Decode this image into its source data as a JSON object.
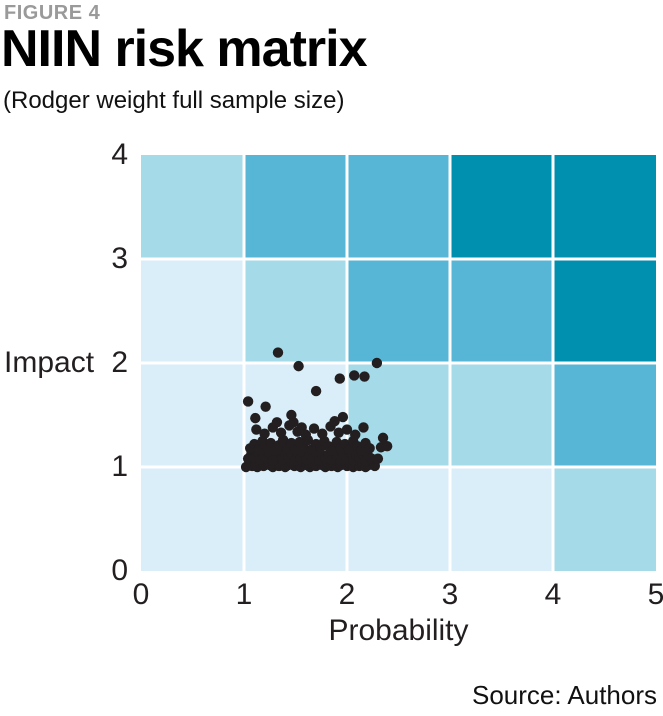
{
  "header": {
    "figure_label": "FIGURE 4",
    "title": "NIIN risk matrix",
    "subtitle": "(Rodger weight full sample size)"
  },
  "footer": {
    "source": "Source: Authors"
  },
  "chart_data": {
    "type": "scatter",
    "title": "NIIN risk matrix",
    "subtitle": "(Rodger weight full sample size)",
    "xlabel": "Probability",
    "ylabel": "Impact",
    "xlim": [
      0,
      5
    ],
    "ylim": [
      0,
      4
    ],
    "x_ticks": [
      "0",
      "1",
      "2",
      "3",
      "4",
      "5"
    ],
    "y_ticks_top_to_bottom": [
      "4",
      "3",
      "2",
      "1",
      "0"
    ],
    "grid": {
      "rows": 4,
      "cols": 5,
      "gap_color": "#FFFFFF",
      "gap_width": 3
    },
    "palette": {
      "very_low": "#D9EEF9",
      "low": "#A5DAE8",
      "medium": "#57B6D5",
      "high": "#0090AF"
    },
    "cell_colors_top_to_bottom": [
      [
        "#A5DAE8",
        "#57B6D5",
        "#57B6D5",
        "#0090AF",
        "#0090AF"
      ],
      [
        "#D9EEF9",
        "#A5DAE8",
        "#57B6D5",
        "#57B6D5",
        "#0090AF"
      ],
      [
        "#D9EEF9",
        "#D9EEF9",
        "#A5DAE8",
        "#A5DAE8",
        "#57B6D5"
      ],
      [
        "#D9EEF9",
        "#D9EEF9",
        "#D9EEF9",
        "#D9EEF9",
        "#A5DAE8"
      ]
    ],
    "point_color": "#231F20",
    "point_radius": 5.2,
    "points": [
      [
        1.02,
        1.0
      ],
      [
        1.05,
        1.02
      ],
      [
        1.08,
        1.01
      ],
      [
        1.1,
        1.04
      ],
      [
        1.13,
        1.0
      ],
      [
        1.16,
        1.03
      ],
      [
        1.19,
        1.01
      ],
      [
        1.22,
        1.05
      ],
      [
        1.25,
        1.02
      ],
      [
        1.28,
        1.0
      ],
      [
        1.31,
        1.03
      ],
      [
        1.34,
        1.01
      ],
      [
        1.37,
        1.04
      ],
      [
        1.4,
        1.0
      ],
      [
        1.43,
        1.02
      ],
      [
        1.46,
        1.05
      ],
      [
        1.49,
        1.01
      ],
      [
        1.52,
        1.03
      ],
      [
        1.55,
        1.0
      ],
      [
        1.58,
        1.04
      ],
      [
        1.61,
        1.02
      ],
      [
        1.64,
        1.0
      ],
      [
        1.67,
        1.03
      ],
      [
        1.7,
        1.01
      ],
      [
        1.73,
        1.05
      ],
      [
        1.76,
        1.02
      ],
      [
        1.79,
        1.0
      ],
      [
        1.82,
        1.04
      ],
      [
        1.85,
        1.01
      ],
      [
        1.88,
        1.03
      ],
      [
        1.91,
        1.0
      ],
      [
        1.94,
        1.02
      ],
      [
        1.97,
        1.05
      ],
      [
        2.0,
        1.01
      ],
      [
        2.03,
        1.03
      ],
      [
        2.06,
        1.0
      ],
      [
        2.09,
        1.04
      ],
      [
        2.12,
        1.01
      ],
      [
        2.15,
        1.03
      ],
      [
        2.18,
        1.0
      ],
      [
        2.21,
        1.02
      ],
      [
        2.24,
        1.05
      ],
      [
        2.27,
        1.01
      ],
      [
        1.04,
        1.08
      ],
      [
        1.07,
        1.12
      ],
      [
        1.1,
        1.09
      ],
      [
        1.13,
        1.14
      ],
      [
        1.16,
        1.07
      ],
      [
        1.19,
        1.11
      ],
      [
        1.22,
        1.08
      ],
      [
        1.25,
        1.13
      ],
      [
        1.28,
        1.06
      ],
      [
        1.31,
        1.1
      ],
      [
        1.34,
        1.14
      ],
      [
        1.37,
        1.07
      ],
      [
        1.4,
        1.12
      ],
      [
        1.43,
        1.09
      ],
      [
        1.46,
        1.13
      ],
      [
        1.49,
        1.06
      ],
      [
        1.52,
        1.11
      ],
      [
        1.55,
        1.08
      ],
      [
        1.58,
        1.13
      ],
      [
        1.61,
        1.07
      ],
      [
        1.64,
        1.12
      ],
      [
        1.67,
        1.09
      ],
      [
        1.7,
        1.14
      ],
      [
        1.73,
        1.06
      ],
      [
        1.76,
        1.11
      ],
      [
        1.79,
        1.08
      ],
      [
        1.82,
        1.12
      ],
      [
        1.85,
        1.07
      ],
      [
        1.88,
        1.13
      ],
      [
        1.91,
        1.09
      ],
      [
        1.94,
        1.06
      ],
      [
        1.97,
        1.12
      ],
      [
        2.0,
        1.08
      ],
      [
        2.03,
        1.14
      ],
      [
        2.06,
        1.07
      ],
      [
        2.09,
        1.11
      ],
      [
        2.12,
        1.09
      ],
      [
        2.15,
        1.13
      ],
      [
        2.18,
        1.06
      ],
      [
        2.21,
        1.1
      ],
      [
        2.24,
        1.08
      ],
      [
        1.06,
        1.18
      ],
      [
        1.1,
        1.22
      ],
      [
        1.14,
        1.17
      ],
      [
        1.18,
        1.25
      ],
      [
        1.22,
        1.19
      ],
      [
        1.26,
        1.23
      ],
      [
        1.3,
        1.16
      ],
      [
        1.34,
        1.21
      ],
      [
        1.38,
        1.26
      ],
      [
        1.42,
        1.18
      ],
      [
        1.46,
        1.23
      ],
      [
        1.5,
        1.17
      ],
      [
        1.54,
        1.24
      ],
      [
        1.58,
        1.19
      ],
      [
        1.62,
        1.26
      ],
      [
        1.66,
        1.17
      ],
      [
        1.7,
        1.22
      ],
      [
        1.74,
        1.18
      ],
      [
        1.78,
        1.25
      ],
      [
        1.82,
        1.2
      ],
      [
        1.86,
        1.16
      ],
      [
        1.9,
        1.24
      ],
      [
        1.94,
        1.18
      ],
      [
        1.98,
        1.22
      ],
      [
        2.02,
        1.17
      ],
      [
        2.06,
        1.25
      ],
      [
        2.1,
        1.2
      ],
      [
        2.14,
        1.16
      ],
      [
        2.18,
        1.23
      ],
      [
        2.22,
        1.18
      ],
      [
        2.3,
        1.08
      ],
      [
        2.33,
        1.19
      ],
      [
        2.35,
        1.28
      ],
      [
        2.39,
        1.2
      ],
      [
        1.12,
        1.36
      ],
      [
        1.2,
        1.32
      ],
      [
        1.28,
        1.38
      ],
      [
        1.32,
        1.43
      ],
      [
        1.36,
        1.33
      ],
      [
        1.44,
        1.4
      ],
      [
        1.48,
        1.43
      ],
      [
        1.52,
        1.34
      ],
      [
        1.56,
        1.38
      ],
      [
        1.6,
        1.31
      ],
      [
        1.68,
        1.37
      ],
      [
        1.76,
        1.32
      ],
      [
        1.84,
        1.39
      ],
      [
        1.88,
        1.44
      ],
      [
        1.92,
        1.33
      ],
      [
        2.0,
        1.36
      ],
      [
        2.08,
        1.31
      ],
      [
        2.16,
        1.38
      ],
      [
        1.04,
        1.63
      ],
      [
        1.21,
        1.58
      ],
      [
        1.11,
        1.47
      ],
      [
        1.46,
        1.5
      ],
      [
        1.96,
        1.48
      ],
      [
        1.7,
        1.73
      ],
      [
        1.33,
        2.1
      ],
      [
        1.53,
        1.97
      ],
      [
        1.93,
        1.85
      ],
      [
        2.07,
        1.88
      ],
      [
        2.17,
        1.87
      ],
      [
        2.29,
        2.0
      ]
    ]
  }
}
